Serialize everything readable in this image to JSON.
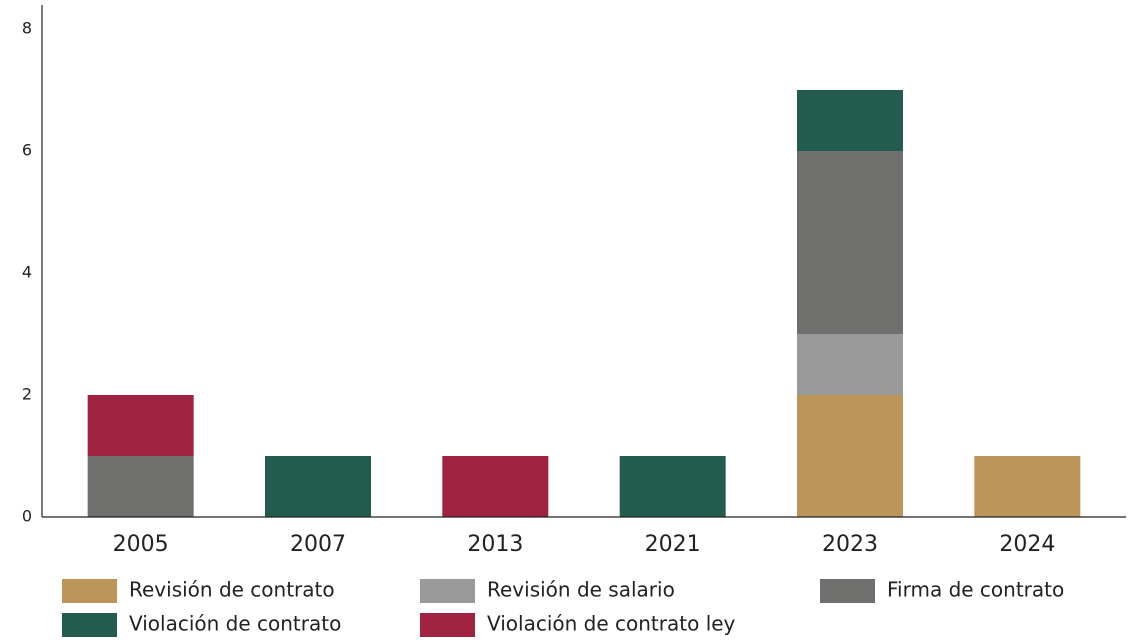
{
  "chart_data": {
    "type": "stacked_bar",
    "categories": [
      "2005",
      "2007",
      "2013",
      "2021",
      "2023",
      "2024"
    ],
    "series": [
      {
        "name": "Revisión de contrato",
        "color": "#bb9559",
        "values": [
          0,
          0,
          0,
          0,
          2,
          1
        ]
      },
      {
        "name": "Revisión de salario",
        "color": "#9a9a9a",
        "values": [
          0,
          0,
          0,
          0,
          1,
          0
        ]
      },
      {
        "name": "Firma de contrato",
        "color": "#6f706e",
        "values": [
          1,
          0,
          0,
          0,
          3,
          0
        ]
      },
      {
        "name": "Violación de contrato",
        "color": "#235b4e",
        "values": [
          0,
          1,
          0,
          1,
          1,
          0
        ]
      },
      {
        "name": "Violación de contrato ley",
        "color": "#9f2241",
        "values": [
          1,
          0,
          1,
          0,
          0,
          0
        ]
      }
    ],
    "ylim": [
      0,
      8
    ],
    "yticks": [
      0,
      2,
      4,
      6,
      8
    ],
    "grid": false
  }
}
